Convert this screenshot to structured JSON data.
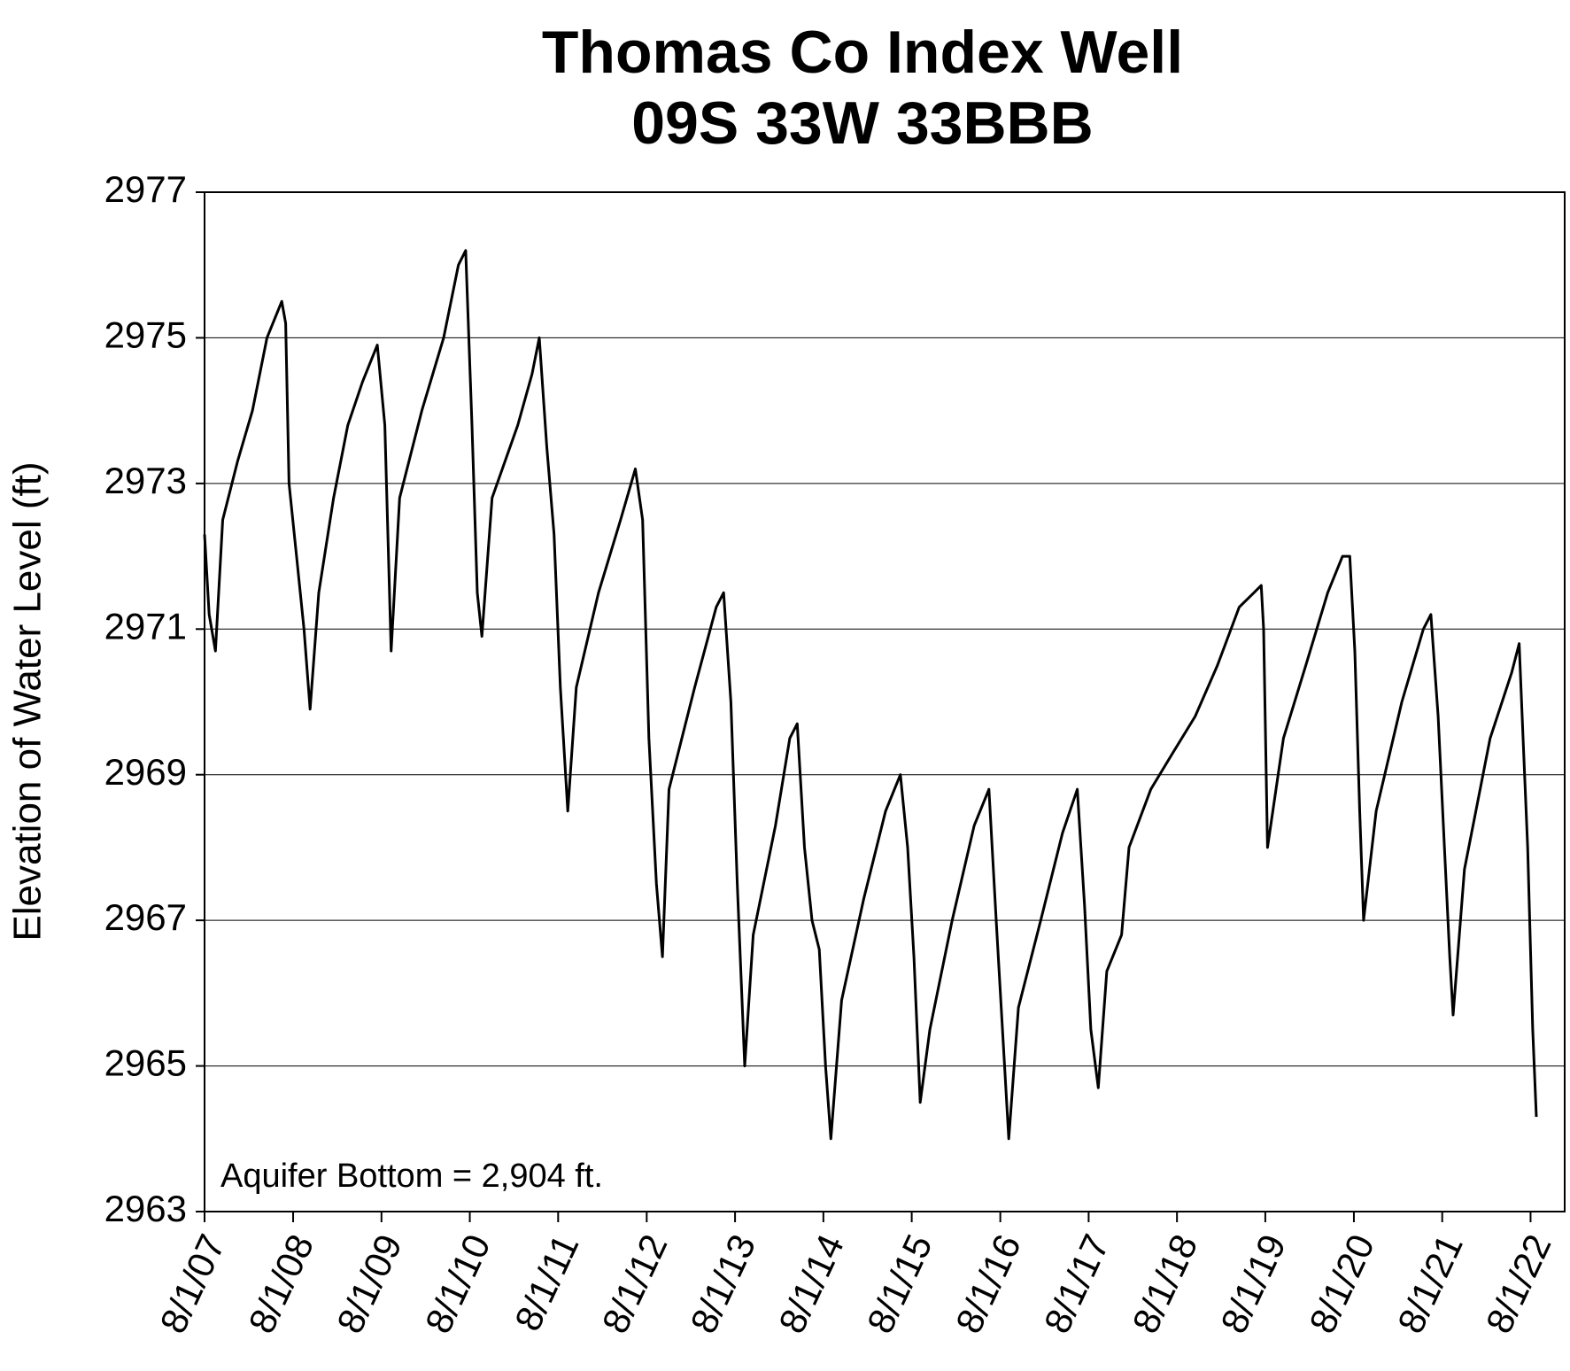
{
  "chart_data": {
    "type": "line",
    "title": "Thomas Co Index Well",
    "subtitle": "09S 33W 33BBB",
    "y_label": "Elevation of Water Level (ft)",
    "annotation": "Aquifer Bottom = 2,904 ft.",
    "color": "#000000",
    "grid": true,
    "x": [
      "2007-08-01",
      "2007-08-20",
      "2007-09-15",
      "2007-10-15",
      "2007-12-15",
      "2008-02-15",
      "2008-04-15",
      "2008-06-15",
      "2008-07-01",
      "2008-07-15",
      "2008-08-15",
      "2008-09-15",
      "2008-10-10",
      "2008-11-15",
      "2009-01-15",
      "2009-03-15",
      "2009-05-15",
      "2009-07-15",
      "2009-08-15",
      "2009-09-10",
      "2009-10-15",
      "2010-01-15",
      "2010-04-15",
      "2010-06-15",
      "2010-07-15",
      "2010-08-10",
      "2010-09-01",
      "2010-09-20",
      "2010-11-01",
      "2011-02-15",
      "2011-04-15",
      "2011-05-15",
      "2011-06-15",
      "2011-07-15",
      "2011-08-10",
      "2011-09-10",
      "2011-10-15",
      "2012-01-15",
      "2012-04-15",
      "2012-06-15",
      "2012-07-15",
      "2012-08-10",
      "2012-09-10",
      "2012-10-05",
      "2012-11-01",
      "2013-02-15",
      "2013-05-15",
      "2013-06-15",
      "2013-07-15",
      "2013-08-10",
      "2013-09-10",
      "2013-10-15",
      "2014-01-15",
      "2014-03-15",
      "2014-04-15",
      "2014-05-15",
      "2014-06-15",
      "2014-07-15",
      "2014-08-10",
      "2014-09-01",
      "2014-10-15",
      "2015-01-15",
      "2015-04-15",
      "2015-06-15",
      "2015-07-15",
      "2015-08-10",
      "2015-09-05",
      "2015-10-15",
      "2016-01-15",
      "2016-04-15",
      "2016-06-15",
      "2016-07-15",
      "2016-08-10",
      "2016-09-05",
      "2016-10-15",
      "2017-01-15",
      "2017-04-15",
      "2017-06-15",
      "2017-07-15",
      "2017-08-10",
      "2017-09-10",
      "2017-10-15",
      "2017-12-15",
      "2018-01-15",
      "2018-04-15",
      "2018-07-15",
      "2018-10-15",
      "2019-01-15",
      "2019-04-15",
      "2019-06-15",
      "2019-07-15",
      "2019-07-25",
      "2019-08-10",
      "2019-10-15",
      "2020-01-15",
      "2020-04-15",
      "2020-06-15",
      "2020-07-15",
      "2020-08-05",
      "2020-08-25",
      "2020-09-10",
      "2020-11-01",
      "2021-02-15",
      "2021-05-15",
      "2021-06-15",
      "2021-07-15",
      "2021-08-10",
      "2021-09-01",
      "2021-09-15",
      "2021-11-01",
      "2022-02-15",
      "2022-05-15",
      "2022-06-15",
      "2022-07-01",
      "2022-07-20",
      "2022-08-10",
      "2022-08-25"
    ],
    "values": [
      2972.3,
      2971.2,
      2970.7,
      2972.5,
      2973.3,
      2974.0,
      2975.0,
      2975.5,
      2975.2,
      2973.0,
      2972.0,
      2971.0,
      2969.9,
      2971.5,
      2972.8,
      2973.8,
      2974.4,
      2974.9,
      2973.8,
      2970.7,
      2972.8,
      2974.0,
      2975.0,
      2976.0,
      2976.2,
      2973.8,
      2971.5,
      2970.9,
      2972.8,
      2973.8,
      2974.5,
      2975.0,
      2973.5,
      2972.3,
      2970.2,
      2968.5,
      2970.2,
      2971.5,
      2972.5,
      2973.2,
      2972.5,
      2969.5,
      2967.5,
      2966.5,
      2968.8,
      2970.2,
      2971.3,
      2971.5,
      2970.0,
      2967.5,
      2965.0,
      2966.8,
      2968.3,
      2969.5,
      2969.7,
      2968.0,
      2967.0,
      2966.6,
      2965.0,
      2964.0,
      2965.9,
      2967.3,
      2968.5,
      2969.0,
      2968.0,
      2966.5,
      2964.5,
      2965.5,
      2967.0,
      2968.3,
      2968.8,
      2967.0,
      2965.5,
      2964.0,
      2965.8,
      2967.0,
      2968.2,
      2968.8,
      2967.2,
      2965.5,
      2964.7,
      2966.3,
      2966.8,
      2968.0,
      2968.8,
      2969.3,
      2969.8,
      2970.5,
      2971.3,
      2971.5,
      2971.6,
      2971.0,
      2968.0,
      2969.5,
      2970.5,
      2971.5,
      2972.0,
      2972.0,
      2970.7,
      2968.5,
      2967.0,
      2968.5,
      2970.0,
      2971.0,
      2971.2,
      2969.8,
      2968.0,
      2966.5,
      2965.7,
      2967.7,
      2969.5,
      2970.4,
      2970.8,
      2969.5,
      2968.0,
      2965.5,
      2964.3
    ],
    "xlim": [
      "2007-08-01",
      "2022-12-20"
    ],
    "xticks": [
      {
        "value": "2007-08-01",
        "label": "8/1/07"
      },
      {
        "value": "2008-08-01",
        "label": "8/1/08"
      },
      {
        "value": "2009-08-01",
        "label": "8/1/09"
      },
      {
        "value": "2010-08-01",
        "label": "8/1/10"
      },
      {
        "value": "2011-08-01",
        "label": "8/1/11"
      },
      {
        "value": "2012-08-01",
        "label": "8/1/12"
      },
      {
        "value": "2013-08-01",
        "label": "8/1/13"
      },
      {
        "value": "2014-08-01",
        "label": "8/1/14"
      },
      {
        "value": "2015-08-01",
        "label": "8/1/15"
      },
      {
        "value": "2016-08-01",
        "label": "8/1/16"
      },
      {
        "value": "2017-08-01",
        "label": "8/1/17"
      },
      {
        "value": "2018-08-01",
        "label": "8/1/18"
      },
      {
        "value": "2019-08-01",
        "label": "8/1/19"
      },
      {
        "value": "2020-08-01",
        "label": "8/1/20"
      },
      {
        "value": "2021-08-01",
        "label": "8/1/21"
      },
      {
        "value": "2022-08-01",
        "label": "8/1/22"
      }
    ],
    "ylim": [
      2963,
      2977
    ],
    "yticks": [
      2963,
      2965,
      2967,
      2969,
      2971,
      2973,
      2975,
      2977
    ]
  }
}
